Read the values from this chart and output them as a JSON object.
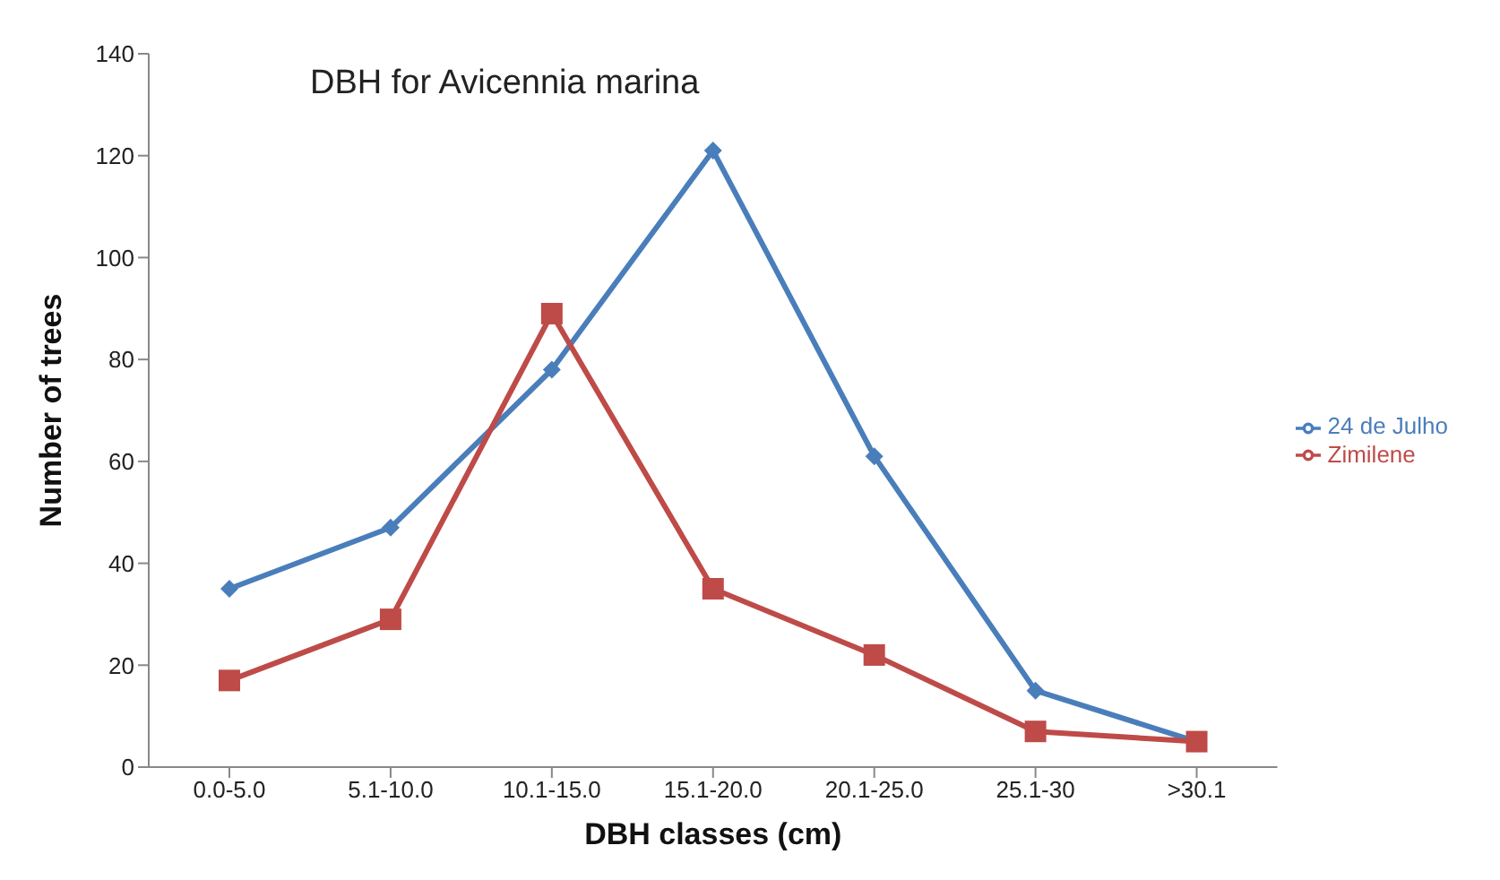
{
  "chart_data": {
    "type": "line",
    "title": "DBH for Avicennia marina",
    "xlabel": "DBH classes (cm)",
    "ylabel": "Number of trees",
    "categories": [
      "0.0-5.0",
      "5.1-10.0",
      "10.1-15.0",
      "15.1-20.0",
      "20.1-25.0",
      "25.1-30",
      ">30.1"
    ],
    "series": [
      {
        "name": "24 de Julho",
        "color": "#4a7ebb",
        "marker": "diamond",
        "values": [
          35,
          47,
          78,
          121,
          61,
          15,
          5
        ]
      },
      {
        "name": "Zimilene",
        "color": "#be4b48",
        "marker": "square",
        "values": [
          17,
          29,
          89,
          35,
          22,
          7,
          5
        ]
      }
    ],
    "ylim": [
      0,
      140
    ],
    "yticks": [
      0,
      20,
      40,
      60,
      80,
      100,
      120,
      140
    ],
    "grid": false,
    "legend": "right",
    "line_style": "solid"
  }
}
